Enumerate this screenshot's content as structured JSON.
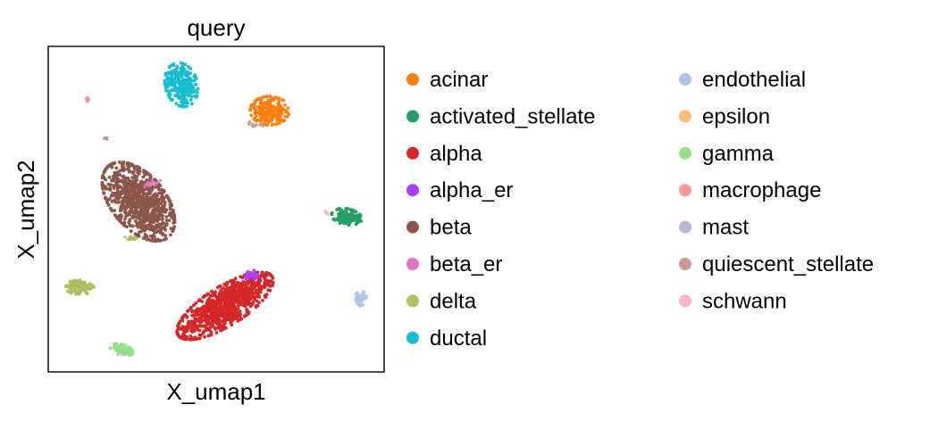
{
  "chart_data": {
    "type": "scatter",
    "title": "query",
    "xlabel": "X_umap1",
    "ylabel": "X_umap2",
    "grid": false,
    "ticks": false,
    "legend_position": "right, two columns",
    "categories": [
      {
        "name": "acinar",
        "color": "#ff7f0e"
      },
      {
        "name": "activated_stellate",
        "color": "#279e68"
      },
      {
        "name": "alpha",
        "color": "#d62728"
      },
      {
        "name": "alpha_er",
        "color": "#aa40fc"
      },
      {
        "name": "beta",
        "color": "#8c564b"
      },
      {
        "name": "beta_er",
        "color": "#e377c2"
      },
      {
        "name": "delta",
        "color": "#b5bd61"
      },
      {
        "name": "ductal",
        "color": "#17becf"
      },
      {
        "name": "endothelial",
        "color": "#aec7e8"
      },
      {
        "name": "epsilon",
        "color": "#ffbb78"
      },
      {
        "name": "gamma",
        "color": "#98df8a"
      },
      {
        "name": "macrophage",
        "color": "#ff9896"
      },
      {
        "name": "mast",
        "color": "#c5b0d5"
      },
      {
        "name": "quiescent_stellate",
        "color": "#c49c94"
      },
      {
        "name": "schwann",
        "color": "#f7b6d2"
      }
    ]
  }
}
